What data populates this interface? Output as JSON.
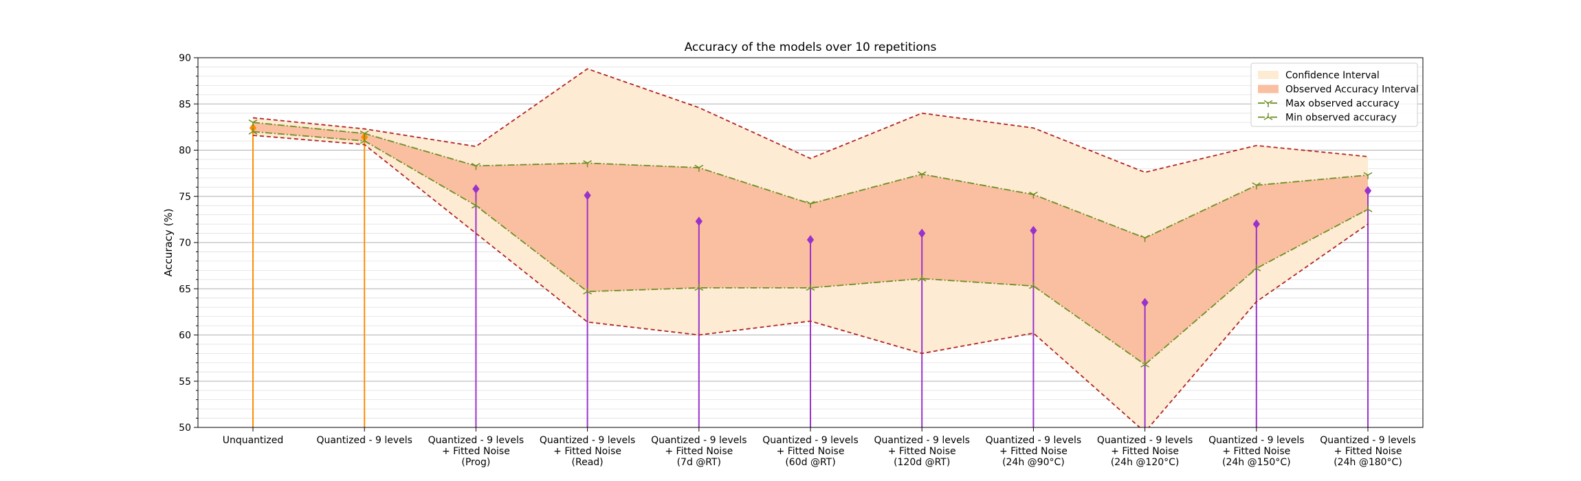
{
  "chart_data": {
    "type": "line",
    "title": "Accuracy of the models over 10 repetitions",
    "xlabel": "",
    "ylabel": "Accuracy (%)",
    "ylim": [
      50,
      90
    ],
    "yticks": [
      50,
      55,
      60,
      65,
      70,
      75,
      80,
      85,
      90
    ],
    "grid": "y-major-and-minor",
    "legend_position": "top-right",
    "categories": [
      [
        "Unquantized"
      ],
      [
        "Quantized - 9 levels"
      ],
      [
        "Quantized - 9 levels",
        "+ Fitted Noise",
        "(Prog)"
      ],
      [
        "Quantized - 9 levels",
        "+ Fitted Noise",
        "(Read)"
      ],
      [
        "Quantized - 9 levels",
        "+ Fitted Noise",
        "(7d @RT)"
      ],
      [
        "Quantized - 9 levels",
        "+ Fitted Noise",
        "(60d @RT)"
      ],
      [
        "Quantized - 9 levels",
        "+ Fitted Noise",
        "(120d @RT)"
      ],
      [
        "Quantized - 9 levels",
        "+ Fitted Noise",
        "(24h @90°C)"
      ],
      [
        "Quantized - 9 levels",
        "+ Fitted Noise",
        "(24h @120°C)"
      ],
      [
        "Quantized - 9 levels",
        "+ Fitted Noise",
        "(24h @150°C)"
      ],
      [
        "Quantized - 9 levels",
        "+ Fitted Noise",
        "(24h @180°C)"
      ]
    ],
    "confidence_interval": {
      "upper": [
        83.5,
        82.3,
        80.4,
        88.8,
        84.6,
        79.1,
        84.0,
        82.4,
        77.6,
        80.5,
        79.3
      ],
      "lower": [
        81.6,
        80.6,
        71.0,
        61.4,
        60.0,
        61.5,
        58.0,
        60.2,
        49.5,
        63.6,
        72.0
      ]
    },
    "series": [
      {
        "name": "Max observed accuracy",
        "values": [
          83.0,
          81.8,
          78.3,
          78.6,
          78.1,
          74.2,
          77.4,
          75.2,
          70.5,
          76.2,
          77.3
        ]
      },
      {
        "name": "Min observed accuracy",
        "values": [
          82.0,
          81.0,
          74.0,
          64.7,
          65.1,
          65.1,
          66.1,
          65.3,
          56.8,
          67.2,
          73.6
        ]
      }
    ],
    "stems": {
      "values": [
        82.4,
        81.4,
        75.8,
        75.1,
        72.3,
        70.3,
        71.0,
        71.3,
        63.5,
        72.0,
        75.6
      ],
      "colors": [
        "#ff8c00",
        "#ff8c00",
        "#9932cc",
        "#9932cc",
        "#9932cc",
        "#9932cc",
        "#9932cc",
        "#9932cc",
        "#9932cc",
        "#9932cc",
        "#9932cc"
      ]
    },
    "legend": [
      {
        "label": "Confidence Interval",
        "kind": "patch",
        "color": "#fdebd3"
      },
      {
        "label": "Observed Accuracy Interval",
        "kind": "patch",
        "color": "#fabfa0"
      },
      {
        "label": "Max observed accuracy",
        "kind": "line",
        "color": "#6b8e23"
      },
      {
        "label": "Min observed accuracy",
        "kind": "line",
        "color": "#6b8e23"
      }
    ],
    "colors": {
      "confidence_fill": "#fdebd3",
      "observed_fill": "#fabfa0",
      "ci_line": "#b22222",
      "minmax_line": "#6b8e23"
    }
  }
}
